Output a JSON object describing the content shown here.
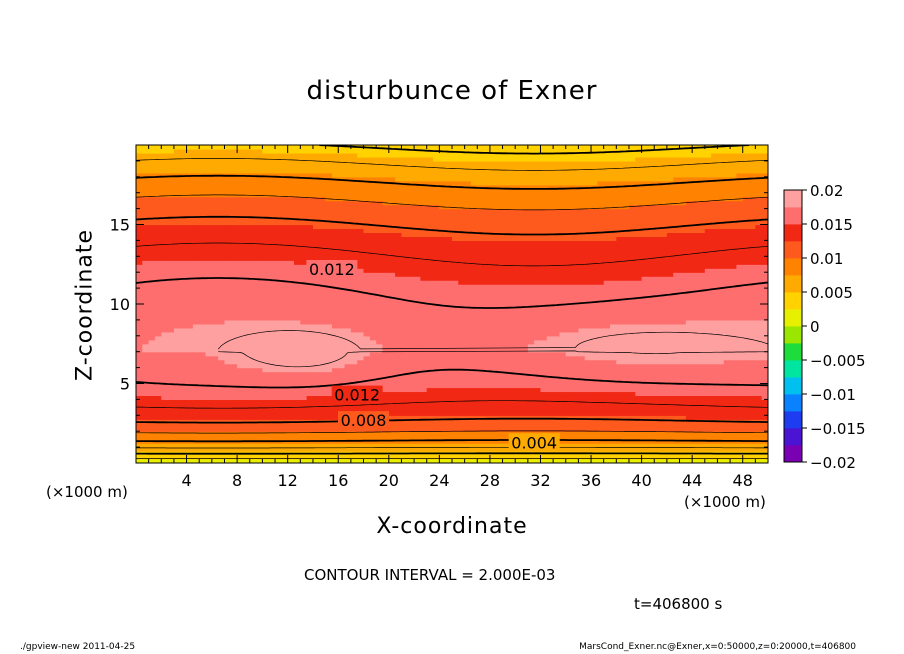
{
  "page": {
    "footer_left": "./gpview-new   2011-04-25",
    "footer_right": "MarsCond_Exner.nc@Exner,x=0:50000,z=0:20000,t=406800",
    "contour_note": "CONTOUR INTERVAL = 2.000E-03",
    "time_note": "t=406800 s",
    "x_unit": "(×1000 m)",
    "colors": {
      "bands": [
        "#7a00b4",
        "#4b14d2",
        "#1e3cf0",
        "#0a82ff",
        "#00c0f0",
        "#00e6a0",
        "#1edc3c",
        "#9be600",
        "#e6f000",
        "#ffd200",
        "#ffaa00",
        "#ff8200",
        "#ff5a1e",
        "#f02814",
        "#ff6e6e",
        "#ffa0a0"
      ]
    }
  },
  "chart_data": {
    "type": "heatmap",
    "title": "disturbunce of Exner",
    "xlabel": "X-coordinate",
    "ylabel": "Z-coordinate",
    "xlim": [
      0,
      50
    ],
    "ylim": [
      0,
      20
    ],
    "x_ticks": [
      4,
      8,
      12,
      16,
      20,
      24,
      28,
      32,
      36,
      40,
      44,
      48
    ],
    "y_ticks": [
      5,
      10,
      15
    ],
    "colorbar": {
      "range": [
        -0.02,
        0.02
      ],
      "tick_labels": [
        "0.02",
        "0.015",
        "0.01",
        "0.005",
        "0",
        "−0.005",
        "−0.01",
        "−0.015",
        "−0.02"
      ],
      "tick_values": [
        0.02,
        0.015,
        0.01,
        0.005,
        0,
        -0.005,
        -0.01,
        -0.015,
        -0.02
      ],
      "band_width": 0.0025
    },
    "contour_interval": 0.002,
    "contour_labels": [
      {
        "text": "0.012",
        "x": 15.5,
        "z": 12.2
      },
      {
        "text": "0.012",
        "x": 17.5,
        "z": 4.3
      },
      {
        "text": "0.008",
        "x": 18,
        "z": 2.7
      },
      {
        "text": "0.004",
        "x": 31.5,
        "z": 1.3
      }
    ]
  }
}
